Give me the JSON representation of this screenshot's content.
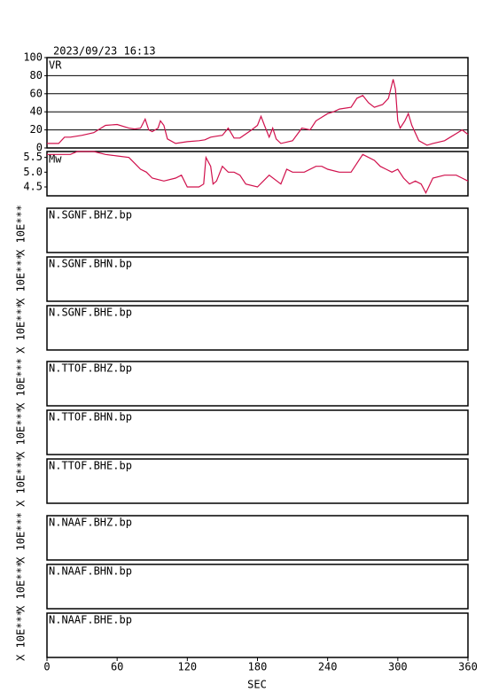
{
  "timestamp": "2023/09/23 16:13",
  "x_axis": {
    "label": "SEC",
    "xlim": [
      0,
      360
    ],
    "xticks": [
      0,
      60,
      120,
      180,
      240,
      300,
      360
    ]
  },
  "chart_data": [
    {
      "type": "line",
      "y_label": "VR",
      "color": "#d0104c",
      "grid": true,
      "xlim": [
        0,
        360
      ],
      "ylim": [
        0,
        100
      ],
      "yticks": [
        0,
        20,
        40,
        60,
        80,
        100
      ],
      "x": [
        0,
        10,
        15,
        20,
        30,
        40,
        50,
        60,
        70,
        75,
        80,
        84,
        87,
        90,
        95,
        97,
        100,
        103,
        110,
        120,
        130,
        135,
        140,
        145,
        150,
        155,
        160,
        165,
        175,
        180,
        183,
        186,
        190,
        193,
        196,
        200,
        210,
        218,
        225,
        230,
        240,
        245,
        250,
        260,
        265,
        270,
        275,
        280,
        287,
        292,
        296,
        298,
        300,
        302,
        306,
        309,
        312,
        318,
        325,
        330,
        340,
        350,
        355,
        360
      ],
      "values": [
        5,
        5,
        12,
        12,
        14,
        17,
        25,
        26,
        22,
        21,
        22,
        32,
        20,
        18,
        22,
        30,
        25,
        10,
        5,
        7,
        8,
        9,
        12,
        13,
        14,
        22,
        11,
        11,
        20,
        25,
        35,
        25,
        12,
        22,
        10,
        5,
        8,
        22,
        20,
        30,
        38,
        40,
        43,
        45,
        55,
        58,
        50,
        45,
        48,
        55,
        76,
        65,
        30,
        22,
        30,
        38,
        25,
        8,
        3,
        5,
        8,
        16,
        20,
        15
      ]
    },
    {
      "type": "line",
      "y_label": "Mw",
      "color": "#d0104c",
      "grid": false,
      "xlim": [
        0,
        360
      ],
      "ylim": [
        4.2,
        5.7
      ],
      "yticks": [
        4.5,
        {
          "value": 5,
          "label": "5.0"
        },
        5.5
      ],
      "x": [
        0,
        10,
        20,
        26,
        30,
        40,
        50,
        60,
        70,
        75,
        80,
        85,
        90,
        100,
        110,
        115,
        120,
        130,
        134,
        136,
        140,
        142,
        145,
        150,
        155,
        160,
        165,
        170,
        180,
        190,
        200,
        205,
        210,
        220,
        230,
        235,
        240,
        250,
        260,
        265,
        270,
        280,
        285,
        290,
        295,
        300,
        305,
        310,
        315,
        320,
        324,
        330,
        340,
        350,
        355,
        360
      ],
      "values": [
        5.6,
        5.6,
        5.6,
        5.7,
        5.7,
        5.7,
        5.6,
        5.55,
        5.5,
        5.3,
        5.1,
        5.0,
        4.8,
        4.7,
        4.8,
        4.9,
        4.5,
        4.5,
        4.6,
        5.5,
        5.2,
        4.6,
        4.7,
        5.2,
        5.0,
        5.0,
        4.9,
        4.6,
        4.5,
        4.9,
        4.6,
        5.1,
        5.0,
        5.0,
        5.2,
        5.2,
        5.1,
        5.0,
        5.0,
        5.3,
        5.6,
        5.4,
        5.2,
        5.1,
        5.0,
        5.1,
        4.8,
        4.6,
        4.7,
        4.6,
        4.3,
        4.8,
        4.9,
        4.9,
        4.8,
        4.7
      ]
    },
    {
      "type": "trace",
      "label": "N.SGNF.BHZ.bp",
      "scale_label": "X 10E***"
    },
    {
      "type": "trace",
      "label": "N.SGNF.BHN.bp",
      "scale_label": "X 10E***"
    },
    {
      "type": "trace",
      "label": "N.SGNF.BHE.bp",
      "scale_label": "X 10E***"
    },
    {
      "type": "trace",
      "label": "N.TTOF.BHZ.bp",
      "scale_label": "X 10E***"
    },
    {
      "type": "trace",
      "label": "N.TTOF.BHN.bp",
      "scale_label": "X 10E***"
    },
    {
      "type": "trace",
      "label": "N.TTOF.BHE.bp",
      "scale_label": "X 10E***"
    },
    {
      "type": "trace",
      "label": "N.NAAF.BHZ.bp",
      "scale_label": "X 10E***"
    },
    {
      "type": "trace",
      "label": "N.NAAF.BHN.bp",
      "scale_label": "X 10E***"
    },
    {
      "type": "trace",
      "label": "N.NAAF.BHE.bp",
      "scale_label": "X 10E***"
    }
  ]
}
